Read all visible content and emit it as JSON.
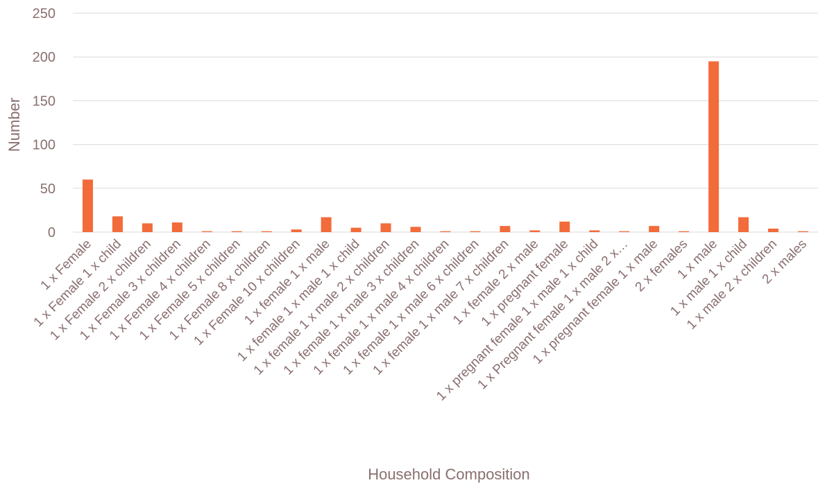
{
  "chart_data": {
    "type": "bar",
    "title": "",
    "xlabel": "Household Composition",
    "ylabel": "Number",
    "ylim": [
      0,
      250
    ],
    "yticks": [
      0,
      50,
      100,
      150,
      200,
      250
    ],
    "grid": true,
    "legend": "none",
    "bar_color": "#f26b3a",
    "grid_color": "#d9d9d9",
    "text_color": "#8a6f6f",
    "categories": [
      "1 x Female",
      "1 x Female 1 x child",
      "1 x Female 2 x children",
      "1 x Female 3 x children",
      "1 x Female 4 x children",
      "1 x Female 5 x children",
      "1 x Female 8 x children",
      "1 x Female 10 x children",
      "1 x female 1 x male",
      "1 x female 1 x male 1 x child",
      "1 x female 1 x male 2 x children",
      "1 x female 1 x male 3 x children",
      "1 x female 1 x male 4 x children",
      "1 x female 1 x male 6 x children",
      "1 x female 1 x male 7 x children",
      "1 x female 2 x male",
      "1 x pregnant female",
      "1 x pregnant female 1 x male 1 x child",
      "1 x Pregnant female 1 x male 2 x…",
      "1 x pregnant female 1 x male",
      "2 x females",
      "1 x male",
      "1 x male 1 x child",
      "1 x male 2 x children",
      "2 x males"
    ],
    "values": [
      60,
      18,
      10,
      11,
      1,
      1,
      1,
      3,
      17,
      5,
      10,
      6,
      1,
      1,
      7,
      2,
      12,
      2,
      1,
      7,
      1,
      195,
      17,
      4,
      1
    ]
  }
}
